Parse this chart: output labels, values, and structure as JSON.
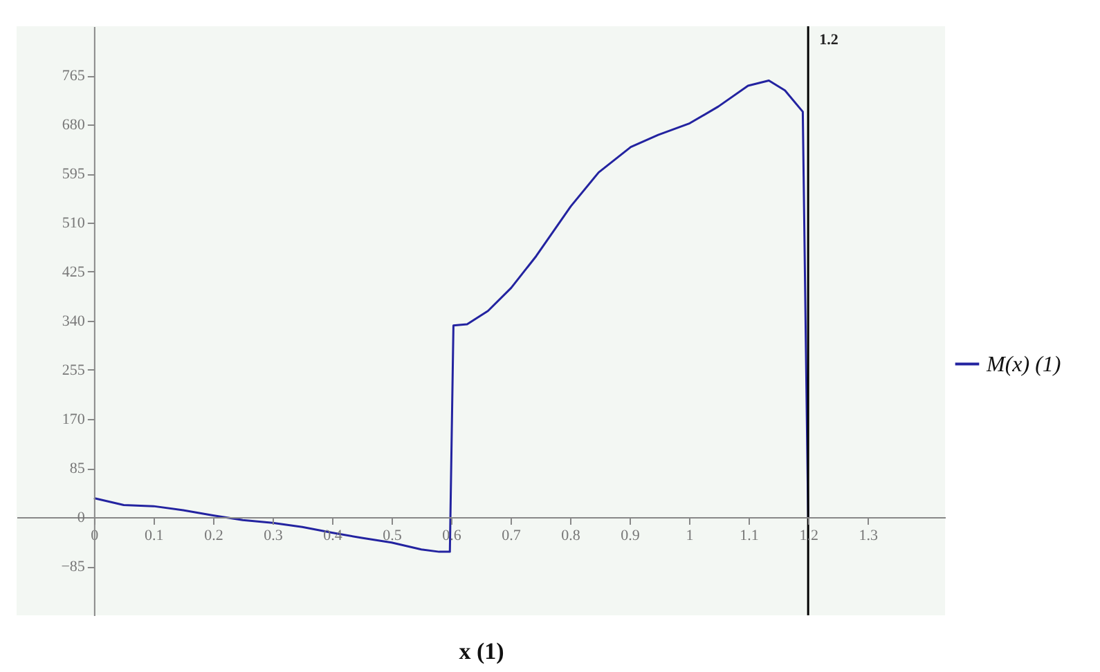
{
  "chart_data": {
    "type": "line",
    "xlabel": "x (1)",
    "x": [
      0,
      0.05,
      0.1,
      0.15,
      0.2,
      0.25,
      0.3,
      0.35,
      0.4,
      0.45,
      0.5,
      0.55,
      0.58,
      0.598,
      0.604,
      0.627,
      0.662,
      0.701,
      0.743,
      0.801,
      0.848,
      0.902,
      0.948,
      1.001,
      1.049,
      1.099,
      1.134,
      1.161,
      1.191,
      1.2
    ],
    "series": [
      {
        "name": "M(x) (1)",
        "color": "#2323a0",
        "values": [
          33,
          21,
          19,
          12,
          3,
          -5,
          -10,
          -17,
          -27,
          -36,
          -44,
          -56,
          -60,
          -60,
          332,
          334,
          357,
          397,
          452,
          538,
          597,
          641,
          662,
          682,
          711,
          747,
          756,
          739,
          702,
          0
        ]
      }
    ],
    "xlim": [
      -0.13,
      1.43
    ],
    "ylim": [
      -170,
      850
    ],
    "xticks": [
      0,
      0.1,
      0.2,
      0.3,
      0.4,
      0.5,
      0.6,
      0.7,
      0.8,
      0.9,
      1,
      1.1,
      1.2,
      1.3
    ],
    "yticks": [
      -85,
      0,
      85,
      170,
      255,
      340,
      425,
      510,
      595,
      680,
      765
    ],
    "ref_lines": [
      {
        "axis": "x",
        "value": 1.2,
        "label": "1.2",
        "color": "#000000"
      }
    ],
    "grid": false,
    "legend": "right"
  }
}
